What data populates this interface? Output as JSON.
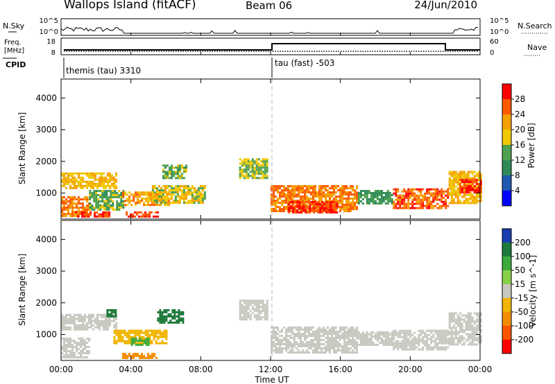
{
  "header": {
    "station": "Wallops Island (fitACF)",
    "beam": "Beam 06",
    "date": "24/Jun/2010"
  },
  "panels": {
    "nsky": {
      "label": "N.Sky",
      "tick_top": "10^5",
      "tick_bottom": "10^0"
    },
    "nsearch": {
      "label": "N.Search",
      "tick_top": "10^5",
      "tick_bottom": "10^0"
    },
    "freq": {
      "label_line1": "Freq.",
      "label_line2": "[MHz]",
      "tick_top": "18",
      "tick_bottom": "8"
    },
    "nave": {
      "label": "Nave",
      "tick_top": "60",
      "tick_bottom": "0"
    },
    "cpid": {
      "label": "CPID",
      "mode1": "themis (tau) 3310",
      "mode2": "tau (fast) -503"
    }
  },
  "x_axis": {
    "label": "Time UT",
    "ticks": [
      "00:00",
      "04:00",
      "08:00",
      "12:00",
      "16:00",
      "20:00",
      "00:00"
    ]
  },
  "y_axis": {
    "label": "Slant Range [km]",
    "ticks": [
      "1000",
      "2000",
      "3000",
      "4000"
    ]
  },
  "power_scale": {
    "label": "Power [dB]",
    "ticks": [
      "4",
      "8",
      "12",
      "16",
      "20",
      "24",
      "28"
    ],
    "colors": [
      "#0000ff",
      "#1e58b0",
      "#2e8b57",
      "#4fa04f",
      "#f0c800",
      "#f5a000",
      "#ff5a00",
      "#ff0000"
    ]
  },
  "velocity_scale": {
    "label": "Velocity [m s^-1]",
    "ticks": [
      "200",
      "100",
      "50",
      "15",
      "-15",
      "-50",
      "-100",
      "-200"
    ],
    "colors": [
      "#1a3ab0",
      "#1e7a3c",
      "#3caa3c",
      "#88d048",
      "#c8c8c0",
      "#f0b400",
      "#f58c00",
      "#ff5500",
      "#ff0000"
    ]
  },
  "chart_data": [
    {
      "type": "heatmap",
      "name": "power",
      "x_range_hours": [
        0,
        24
      ],
      "y_range_km": [
        180,
        4600
      ],
      "mode_change_hour": 12,
      "regions": [
        {
          "t0": 0.0,
          "t1": 3.1,
          "r0": 1150,
          "r1": 1650,
          "v": 20
        },
        {
          "t0": 0.0,
          "t1": 1.6,
          "r0": 300,
          "r1": 900,
          "v": 24
        },
        {
          "t0": 0.8,
          "t1": 2.8,
          "r0": 250,
          "r1": 420,
          "v": 28
        },
        {
          "t0": 1.6,
          "t1": 3.6,
          "r0": 500,
          "r1": 1100,
          "v": 14
        },
        {
          "t0": 3.5,
          "t1": 6.2,
          "r0": 600,
          "r1": 1050,
          "v": 22
        },
        {
          "t0": 3.7,
          "t1": 5.5,
          "r0": 250,
          "r1": 420,
          "v": 28
        },
        {
          "t0": 5.2,
          "t1": 8.2,
          "r0": 700,
          "r1": 1250,
          "v": 18
        },
        {
          "t0": 5.8,
          "t1": 7.2,
          "r0": 1500,
          "r1": 1900,
          "v": 14
        },
        {
          "t0": 10.2,
          "t1": 11.8,
          "r0": 1500,
          "r1": 2100,
          "v": 16
        },
        {
          "t0": 12.0,
          "t1": 17.0,
          "r0": 450,
          "r1": 1250,
          "v": 24
        },
        {
          "t0": 13.0,
          "t1": 15.8,
          "r0": 380,
          "r1": 750,
          "v": 28
        },
        {
          "t0": 17.0,
          "t1": 19.0,
          "r0": 700,
          "r1": 1100,
          "v": 12
        },
        {
          "t0": 19.0,
          "t1": 22.2,
          "r0": 500,
          "r1": 1150,
          "v": 26
        },
        {
          "t0": 22.2,
          "t1": 24.0,
          "r0": 700,
          "r1": 1700,
          "v": 20
        },
        {
          "t0": 22.8,
          "t1": 24.0,
          "r0": 1050,
          "r1": 1450,
          "v": 28
        }
      ]
    },
    {
      "type": "heatmap",
      "name": "velocity",
      "x_range_hours": [
        0,
        24
      ],
      "y_range_km": [
        180,
        4600
      ],
      "mode_change_hour": 12,
      "regions": [
        {
          "t0": 0.0,
          "t1": 3.1,
          "r0": 1150,
          "r1": 1650,
          "v": 0
        },
        {
          "t0": 0.0,
          "t1": 1.6,
          "r0": 300,
          "r1": 900,
          "v": 0
        },
        {
          "t0": 2.6,
          "t1": 3.1,
          "r0": 1600,
          "r1": 1800,
          "v": 60
        },
        {
          "t0": 3.0,
          "t1": 6.0,
          "r0": 700,
          "r1": 1150,
          "v": -30
        },
        {
          "t0": 4.0,
          "t1": 5.0,
          "r0": 700,
          "r1": 900,
          "v": 30
        },
        {
          "t0": 5.5,
          "t1": 7.0,
          "r0": 1400,
          "r1": 1800,
          "v": 60
        },
        {
          "t0": 10.2,
          "t1": 11.8,
          "r0": 1500,
          "r1": 2100,
          "v": 0
        },
        {
          "t0": 12.0,
          "t1": 17.0,
          "r0": 450,
          "r1": 1250,
          "v": 0
        },
        {
          "t0": 17.0,
          "t1": 19.0,
          "r0": 700,
          "r1": 1100,
          "v": 0
        },
        {
          "t0": 19.0,
          "t1": 22.2,
          "r0": 500,
          "r1": 1150,
          "v": 0
        },
        {
          "t0": 22.2,
          "t1": 24.0,
          "r0": 700,
          "r1": 1700,
          "v": 0
        },
        {
          "t0": 3.5,
          "t1": 5.5,
          "r0": 250,
          "r1": 420,
          "v": -60
        }
      ]
    }
  ]
}
